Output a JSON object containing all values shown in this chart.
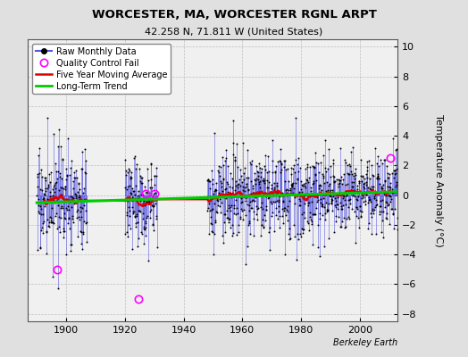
{
  "title": "WORCESTER, MA, WORCESTER RGNL ARPT",
  "subtitle": "42.258 N, 71.811 W (United States)",
  "ylabel": "Temperature Anomaly (°C)",
  "watermark": "Berkeley Earth",
  "ylim": [
    -8.5,
    10.5
  ],
  "yticks": [
    -8,
    -6,
    -4,
    -2,
    0,
    2,
    4,
    6,
    8,
    10
  ],
  "xlim": [
    1887,
    2013
  ],
  "xticks": [
    1900,
    1920,
    1940,
    1960,
    1980,
    2000
  ],
  "bg_color": "#e0e0e0",
  "plot_bg_color": "#f0f0f0",
  "raw_line_color": "#5555dd",
  "raw_dot_color": "#000000",
  "qc_fail_color": "#ff00ff",
  "moving_avg_color": "#dd0000",
  "trend_color": "#00cc00",
  "seed": 17,
  "start_year": 1890,
  "end_year": 2012,
  "gap1_start": 1907,
  "gap1_end": 1920,
  "gap2_start": 1931,
  "gap2_end": 1948,
  "trend_slope": 0.006,
  "trend_intercept": -0.15,
  "qc_fail_points": [
    [
      1897.0,
      -5.0
    ],
    [
      1924.5,
      -7.0
    ],
    [
      1927.0,
      0.1
    ],
    [
      1930.0,
      0.1
    ],
    [
      2010.5,
      2.5
    ]
  ]
}
